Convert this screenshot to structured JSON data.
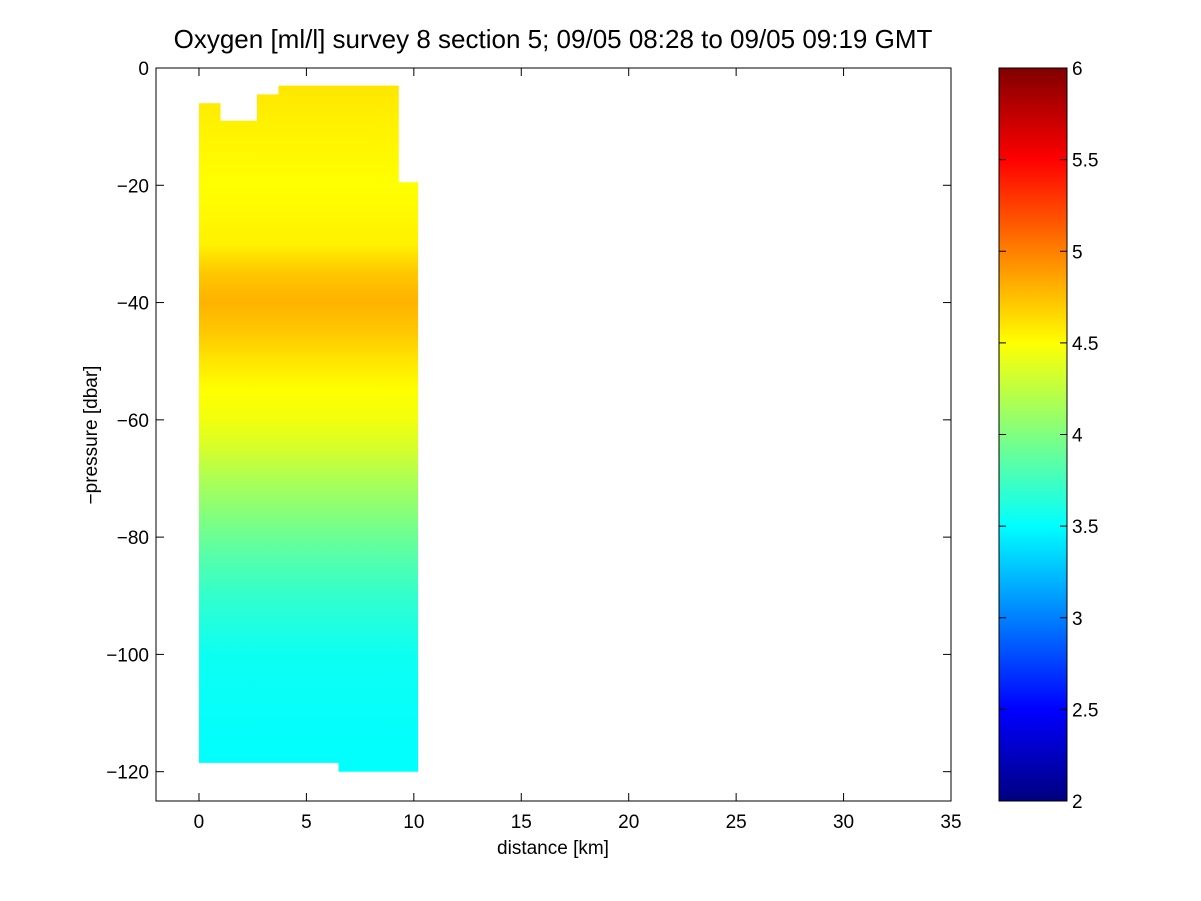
{
  "chart_data": {
    "type": "heatmap",
    "title": "Oxygen [ml/l] survey 8 section 5; 09/05 08:28 to 09/05 09:19 GMT",
    "xlabel": "distance [km]",
    "ylabel": "−pressure [dbar]",
    "xlim": [
      -2,
      35
    ],
    "ylim": [
      -125,
      0
    ],
    "xticks": [
      0,
      5,
      10,
      15,
      20,
      25,
      30,
      35
    ],
    "xtick_labels": [
      "0",
      "5",
      "10",
      "15",
      "20",
      "25",
      "30",
      "35"
    ],
    "yticks": [
      0,
      -20,
      -40,
      -60,
      -80,
      -100,
      -120
    ],
    "ytick_labels": [
      "0",
      "−20",
      "−40",
      "−60",
      "−80",
      "−100",
      "−120"
    ],
    "grid": false,
    "colorbar": {
      "colormap": "jet",
      "range": [
        2,
        6
      ],
      "ticks": [
        2,
        2.5,
        3,
        3.5,
        4,
        4.5,
        5,
        5.5,
        6
      ],
      "tick_labels": [
        "2",
        "2.5",
        "3",
        "3.5",
        "4",
        "4.5",
        "5",
        "5.5",
        "6"
      ]
    },
    "data_extent": {
      "x": [
        0,
        10.2
      ],
      "top_profile": [
        [
          0,
          -6
        ],
        [
          1,
          -6
        ],
        [
          1,
          -9
        ],
        [
          2.7,
          -9
        ],
        [
          2.7,
          -4.5
        ],
        [
          3.7,
          -4.5
        ],
        [
          3.7,
          -3
        ],
        [
          9.3,
          -3
        ],
        [
          9.3,
          -19.5
        ],
        [
          10.2,
          -19.5
        ]
      ],
      "bottom_profile": [
        [
          0,
          -118.5
        ],
        [
          6.5,
          -118.5
        ],
        [
          6.5,
          -120
        ],
        [
          10.2,
          -120
        ]
      ]
    },
    "depth_profile": {
      "pressure": [
        0,
        -10,
        -20,
        -30,
        -35,
        -40,
        -45,
        -50,
        -55,
        -60,
        -65,
        -70,
        -75,
        -80,
        -85,
        -90,
        -95,
        -100,
        -110,
        -120
      ],
      "oxygen": [
        4.6,
        4.55,
        4.5,
        4.55,
        4.72,
        4.8,
        4.72,
        4.6,
        4.5,
        4.45,
        4.33,
        4.18,
        4.05,
        3.92,
        3.8,
        3.7,
        3.62,
        3.55,
        3.52,
        3.5
      ]
    }
  }
}
